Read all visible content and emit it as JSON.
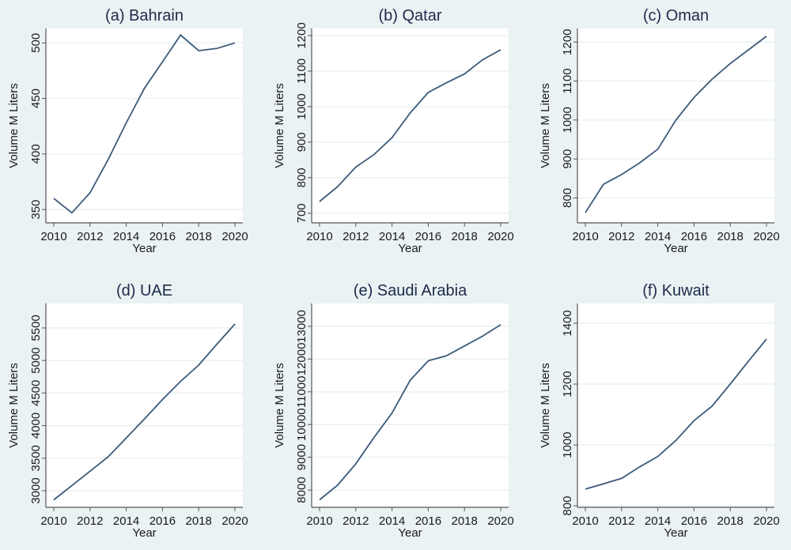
{
  "colors": {
    "background": "#eaf2f3",
    "plot": "#ffffff",
    "line": "#3d5a78",
    "grid": "#eaf2f3",
    "text": "#1a1a1a",
    "title": "#1e2a4a"
  },
  "chart_data": [
    {
      "type": "line",
      "title": "(a) Bahrain",
      "xlabel": "Year",
      "ylabel": "Volume M Liters",
      "x": [
        2010,
        2011,
        2012,
        2013,
        2014,
        2015,
        2016,
        2017,
        2018,
        2019,
        2020
      ],
      "values": [
        360,
        347,
        365,
        395,
        428,
        459,
        483,
        507,
        493,
        495,
        500
      ],
      "yticks": [
        350,
        400,
        450,
        500
      ],
      "xticks": [
        2010,
        2012,
        2014,
        2016,
        2018,
        2020
      ],
      "ylim": [
        338,
        513
      ],
      "grid": true
    },
    {
      "type": "line",
      "title": "(b) Qatar",
      "xlabel": "Year",
      "ylabel": "Volume M Liters",
      "x": [
        2010,
        2011,
        2012,
        2013,
        2014,
        2015,
        2016,
        2017,
        2018,
        2019,
        2020
      ],
      "values": [
        733,
        775,
        830,
        865,
        913,
        982,
        1040,
        1067,
        1092,
        1132,
        1160
      ],
      "yticks": [
        700,
        800,
        900,
        1000,
        1100,
        1200
      ],
      "xticks": [
        2010,
        2012,
        2014,
        2016,
        2018,
        2020
      ],
      "ylim": [
        673,
        1220
      ],
      "grid": true
    },
    {
      "type": "line",
      "title": "(c) Oman",
      "xlabel": "Year",
      "ylabel": "Volume M Liters",
      "x": [
        2010,
        2011,
        2012,
        2013,
        2014,
        2015,
        2016,
        2017,
        2018,
        2019,
        2020
      ],
      "values": [
        762,
        835,
        860,
        890,
        925,
        1000,
        1058,
        1105,
        1145,
        1180,
        1215
      ],
      "yticks": [
        800,
        900,
        1000,
        1100,
        1200
      ],
      "xticks": [
        2010,
        2012,
        2014,
        2016,
        2018,
        2020
      ],
      "ylim": [
        736,
        1235
      ],
      "grid": true
    },
    {
      "type": "line",
      "title": "(d) UAE",
      "xlabel": "Year",
      "ylabel": "Volume M Liters",
      "x": [
        2010,
        2011,
        2012,
        2013,
        2014,
        2015,
        2016,
        2017,
        2018,
        2019,
        2020
      ],
      "values": [
        2860,
        3080,
        3300,
        3520,
        3810,
        4100,
        4400,
        4680,
        4930,
        5250,
        5560
      ],
      "yticks": [
        3000,
        3500,
        4000,
        4500,
        5000,
        5500
      ],
      "xticks": [
        2010,
        2012,
        2014,
        2016,
        2018,
        2020
      ],
      "ylim": [
        2745,
        5876
      ],
      "grid": true
    },
    {
      "type": "line",
      "title": "(e) Saudi Arabia",
      "xlabel": "Year",
      "ylabel": "Volume M Liters",
      "x": [
        2010,
        2011,
        2012,
        2013,
        2014,
        2015,
        2016,
        2017,
        2018,
        2019,
        2020
      ],
      "values": [
        7700,
        8150,
        8800,
        9600,
        10350,
        11350,
        11950,
        12100,
        12400,
        12700,
        13050
      ],
      "yticks": [
        8000,
        9000,
        10000,
        11000,
        12000,
        13000
      ],
      "xticks": [
        2010,
        2012,
        2014,
        2016,
        2018,
        2020
      ],
      "ylim": [
        7470,
        13700
      ],
      "grid": true
    },
    {
      "type": "line",
      "title": "(f) Kuwait",
      "xlabel": "Year",
      "ylabel": "Volume M Liters",
      "x": [
        2010,
        2011,
        2012,
        2013,
        2014,
        2015,
        2016,
        2017,
        2018,
        2019,
        2020
      ],
      "values": [
        855,
        872,
        890,
        928,
        962,
        1015,
        1080,
        1128,
        1200,
        1275,
        1348
      ],
      "yticks": [
        800,
        1000,
        1200,
        1400
      ],
      "xticks": [
        2010,
        2012,
        2014,
        2016,
        2018,
        2020
      ],
      "ylim": [
        795,
        1465
      ],
      "grid": true
    }
  ]
}
